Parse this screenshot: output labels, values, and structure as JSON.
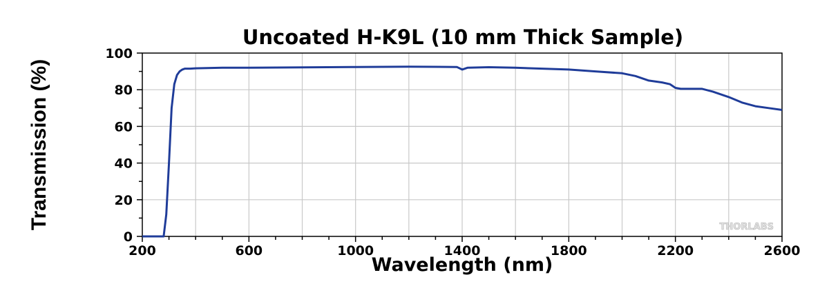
{
  "chart_data": {
    "type": "line",
    "title": "Uncoated  H-K9L  (10 mm Thick Sample)",
    "xlabel": "Wavelength (nm)",
    "ylabel": "Transmission (%)",
    "xlim": [
      200,
      2600
    ],
    "ylim": [
      0,
      100
    ],
    "xticks": [
      200,
      600,
      1000,
      1400,
      1800,
      2200,
      2600
    ],
    "yticks": [
      0,
      20,
      40,
      60,
      80,
      100
    ],
    "grid": true,
    "watermark": "THORLABS",
    "line_color": "#1f3c99",
    "series": [
      {
        "x": [
          200,
          280,
          290,
          300,
          310,
          320,
          330,
          340,
          350,
          360,
          380,
          400,
          500,
          600,
          800,
          1000,
          1200,
          1380,
          1400,
          1420,
          1500,
          1600,
          1700,
          1800,
          1900,
          2000,
          2050,
          2100,
          2150,
          2180,
          2200,
          2220,
          2250,
          2300,
          2340,
          2400,
          2450,
          2500,
          2550,
          2600
        ],
        "y": [
          0,
          0,
          12,
          40,
          70,
          83,
          88,
          90,
          91,
          91.5,
          91.5,
          91.7,
          92,
          92,
          92.2,
          92.4,
          92.6,
          92.4,
          91,
          92,
          92.3,
          92,
          91.5,
          91,
          90,
          89,
          87.5,
          85,
          84,
          83,
          81,
          80.5,
          80.5,
          80.5,
          79,
          76,
          73,
          71,
          70,
          69
        ]
      }
    ]
  }
}
